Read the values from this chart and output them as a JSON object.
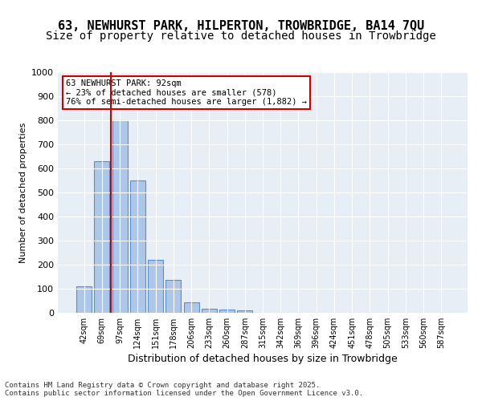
{
  "title_line1": "63, NEWHURST PARK, HILPERTON, TROWBRIDGE, BA14 7QU",
  "title_line2": "Size of property relative to detached houses in Trowbridge",
  "xlabel": "Distribution of detached houses by size in Trowbridge",
  "ylabel": "Number of detached properties",
  "categories": [
    "42sqm",
    "69sqm",
    "97sqm",
    "124sqm",
    "151sqm",
    "178sqm",
    "206sqm",
    "233sqm",
    "260sqm",
    "287sqm",
    "315sqm",
    "342sqm",
    "369sqm",
    "396sqm",
    "424sqm",
    "451sqm",
    "478sqm",
    "505sqm",
    "533sqm",
    "560sqm",
    "587sqm"
  ],
  "values": [
    110,
    630,
    800,
    550,
    220,
    138,
    42,
    18,
    13,
    10,
    0,
    0,
    0,
    0,
    0,
    0,
    0,
    0,
    0,
    0,
    0
  ],
  "bar_color": "#aec6e8",
  "bar_edge_color": "#5b8fc9",
  "vline_x": 1,
  "vline_color": "#cc0000",
  "annotation_text": "63 NEWHURST PARK: 92sqm\n← 23% of detached houses are smaller (578)\n76% of semi-detached houses are larger (1,882) →",
  "annotation_box_color": "#ffffff",
  "annotation_box_edge_color": "#cc0000",
  "ylim": [
    0,
    1000
  ],
  "yticks": [
    0,
    100,
    200,
    300,
    400,
    500,
    600,
    700,
    800,
    900,
    1000
  ],
  "background_color": "#e8eef5",
  "footer_text": "Contains HM Land Registry data © Crown copyright and database right 2025.\nContains public sector information licensed under the Open Government Licence v3.0.",
  "title_fontsize": 11,
  "subtitle_fontsize": 10
}
